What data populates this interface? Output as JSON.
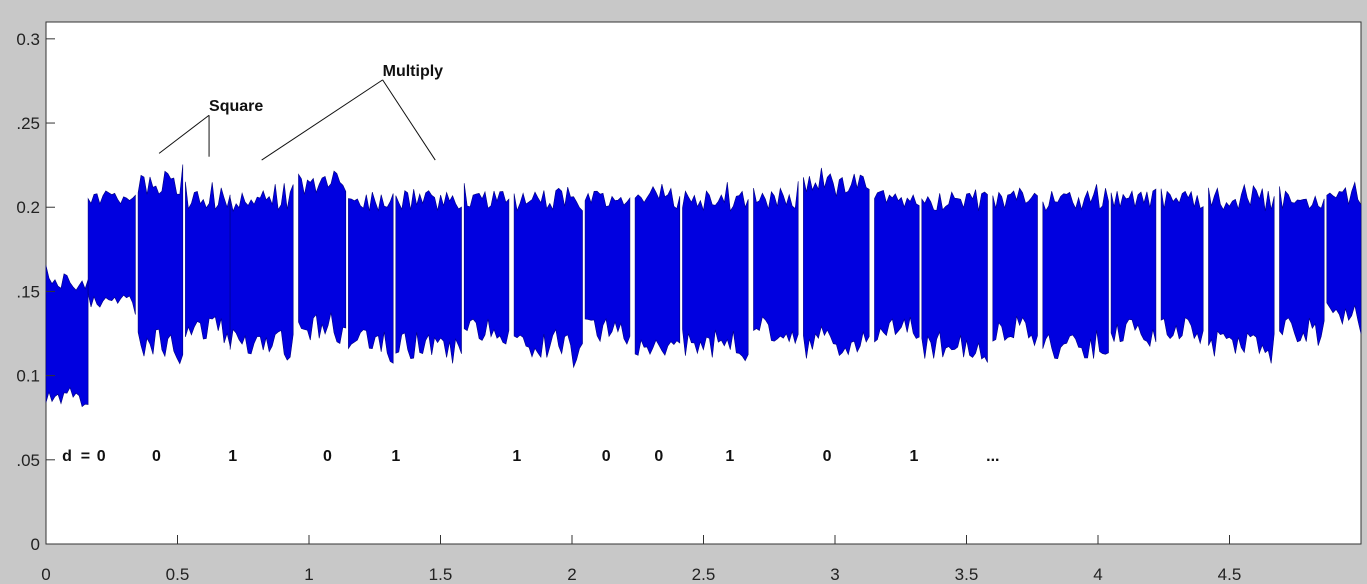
{
  "chart_data": {
    "type": "line",
    "title": "",
    "xlabel": "",
    "ylabel": "",
    "xlim": [
      0,
      5
    ],
    "ylim": [
      0,
      0.31
    ],
    "grid": false,
    "legend": "none",
    "x_ticks": [
      0,
      0.5,
      1,
      1.5,
      2,
      2.5,
      3,
      3.5,
      4,
      4.5
    ],
    "x_tick_labels": [
      "0",
      "0.5",
      "1",
      "1.5",
      "2",
      "2.5",
      "3",
      "3.5",
      "4",
      "4.5"
    ],
    "y_ticks": [
      0,
      0.05,
      0.1,
      0.15,
      0.2,
      0.25,
      0.3
    ],
    "y_tick_labels": [
      "0",
      ".05",
      "0.1",
      ".15",
      "0.2",
      ".25",
      "0.3"
    ],
    "series_color": "#0000e0",
    "segments": [
      {
        "start": 0.0,
        "end": 0.16,
        "low": 0.08,
        "high": 0.16
      },
      {
        "start": 0.16,
        "end": 0.34,
        "low": 0.14,
        "high": 0.21
      },
      {
        "start": 0.35,
        "end": 0.52,
        "low": 0.11,
        "high": 0.22
      },
      {
        "start": 0.53,
        "end": 0.7,
        "low": 0.12,
        "high": 0.21
      },
      {
        "start": 0.7,
        "end": 0.94,
        "low": 0.11,
        "high": 0.21
      },
      {
        "start": 0.96,
        "end": 1.14,
        "low": 0.12,
        "high": 0.22
      },
      {
        "start": 1.15,
        "end": 1.32,
        "low": 0.11,
        "high": 0.21
      },
      {
        "start": 1.33,
        "end": 1.58,
        "low": 0.11,
        "high": 0.21
      },
      {
        "start": 1.59,
        "end": 1.76,
        "low": 0.12,
        "high": 0.21
      },
      {
        "start": 1.78,
        "end": 2.04,
        "low": 0.11,
        "high": 0.21
      },
      {
        "start": 2.05,
        "end": 2.22,
        "low": 0.12,
        "high": 0.21
      },
      {
        "start": 2.24,
        "end": 2.41,
        "low": 0.11,
        "high": 0.21
      },
      {
        "start": 2.42,
        "end": 2.67,
        "low": 0.11,
        "high": 0.21
      },
      {
        "start": 2.69,
        "end": 2.86,
        "low": 0.12,
        "high": 0.21
      },
      {
        "start": 2.88,
        "end": 3.13,
        "low": 0.11,
        "high": 0.22
      },
      {
        "start": 3.15,
        "end": 3.32,
        "low": 0.12,
        "high": 0.21
      },
      {
        "start": 3.33,
        "end": 3.58,
        "low": 0.11,
        "high": 0.21
      },
      {
        "start": 3.6,
        "end": 3.77,
        "low": 0.12,
        "high": 0.21
      },
      {
        "start": 3.79,
        "end": 4.04,
        "low": 0.11,
        "high": 0.21
      },
      {
        "start": 4.05,
        "end": 4.22,
        "low": 0.12,
        "high": 0.21
      },
      {
        "start": 4.24,
        "end": 4.4,
        "low": 0.12,
        "high": 0.21
      },
      {
        "start": 4.42,
        "end": 4.67,
        "low": 0.11,
        "high": 0.21
      },
      {
        "start": 4.69,
        "end": 4.86,
        "low": 0.12,
        "high": 0.21
      },
      {
        "start": 4.87,
        "end": 5.0,
        "low": 0.13,
        "high": 0.21
      }
    ],
    "annotations": [
      {
        "text": "Square",
        "x": 0.62,
        "y": 0.257,
        "targets": [
          [
            0.43,
            0.232
          ],
          [
            0.62,
            0.23
          ]
        ]
      },
      {
        "text": "Multiply",
        "x": 1.28,
        "y": 0.278,
        "targets": [
          [
            0.82,
            0.228
          ],
          [
            1.48,
            0.228
          ]
        ]
      }
    ],
    "bit_labels": {
      "y": 0.053,
      "items": [
        {
          "text": "d",
          "x": 0.08
        },
        {
          "text": "=",
          "x": 0.15
        },
        {
          "text": "0",
          "x": 0.21
        },
        {
          "text": "0",
          "x": 0.42
        },
        {
          "text": "1",
          "x": 0.71
        },
        {
          "text": "0",
          "x": 1.07
        },
        {
          "text": "1",
          "x": 1.33
        },
        {
          "text": "1",
          "x": 1.79
        },
        {
          "text": "0",
          "x": 2.13
        },
        {
          "text": "0",
          "x": 2.33
        },
        {
          "text": "1",
          "x": 2.6
        },
        {
          "text": "0",
          "x": 2.97
        },
        {
          "text": "1",
          "x": 3.3
        },
        {
          "text": "...",
          "x": 3.6
        }
      ]
    }
  }
}
